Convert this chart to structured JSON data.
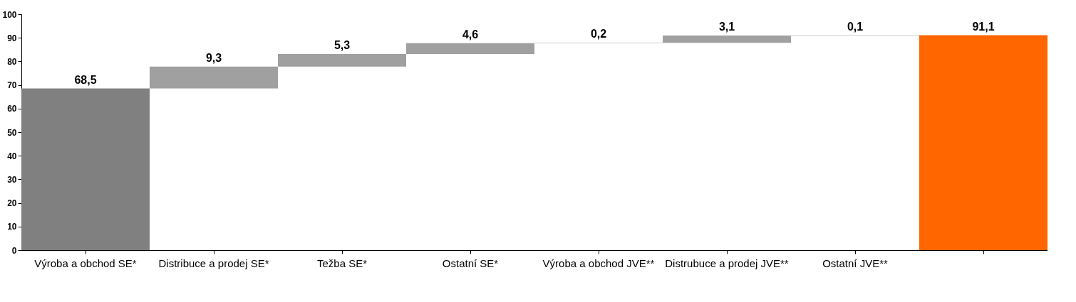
{
  "chart_data": {
    "type": "bar",
    "categories": [
      "Výroba a obchod SE*",
      "Distribuce a prodej SE*",
      "Težba SE*",
      "Ostatní SE*",
      "Výroba a obchod JVE**",
      "Distrubuce a prodej JVE**",
      "Ostatní JVE**",
      null
    ],
    "values": [
      68.5,
      9.3,
      5.3,
      4.6,
      0.2,
      3.1,
      0.1,
      91.1
    ],
    "base": [
      0,
      68.5,
      77.8,
      83.1,
      87.7,
      87.9,
      91.0,
      0
    ],
    "colors": [
      "#808080",
      "#a0a0a0",
      "#a0a0a0",
      "#a0a0a0",
      "#a0a0a0",
      "#a0a0a0",
      "#a0a0a0",
      "#ff6600"
    ],
    "value_labels": [
      "68,5",
      "9,3",
      "5,3",
      "4,6",
      "0,2",
      "3,1",
      "0,1",
      "91,1"
    ],
    "ylim": [
      0,
      100
    ],
    "yticks": [
      0,
      10,
      20,
      30,
      40,
      50,
      60,
      70,
      80,
      90,
      100
    ],
    "grid": false
  }
}
